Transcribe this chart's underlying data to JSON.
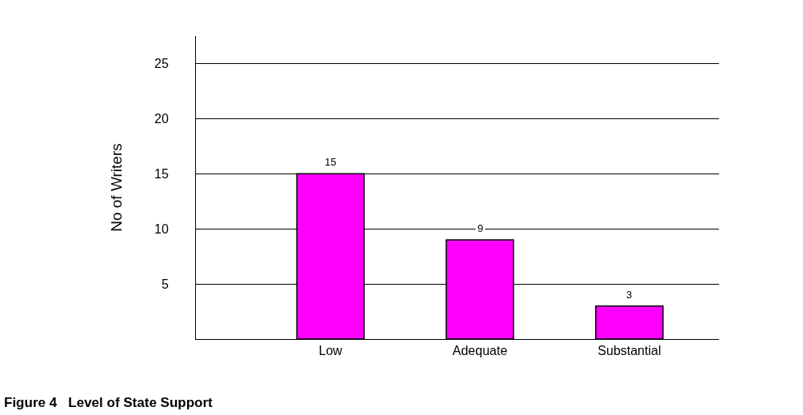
{
  "chart_data": {
    "type": "bar",
    "title": "Figure 4   Level of State Support",
    "ylabel": "No of Writers",
    "categories": [
      "Low",
      "Adequate",
      "Substantial"
    ],
    "values": [
      15,
      9,
      3
    ],
    "color": "#ff00ff",
    "ylim": [
      0,
      27.5
    ],
    "yticks": [
      5,
      10,
      15,
      20,
      25
    ],
    "grid": "y",
    "data_labels": true
  }
}
